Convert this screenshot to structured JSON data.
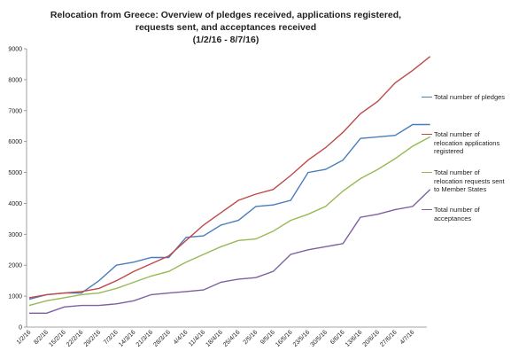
{
  "chart_data": {
    "type": "line",
    "title": "Relocation from Greece: Overview of pledges received, applications registered, requests sent, and acceptances received",
    "subtitle": "(1/2/16 - 8/7/16)",
    "categories": [
      "1/2/16",
      "8/2/16",
      "15/2/16",
      "22/2/16",
      "29/2/16",
      "7/3/16",
      "14/3/16",
      "21/3/16",
      "28/3/16",
      "4/4/16",
      "11/4/16",
      "18/4/16",
      "25/4/16",
      "2/5/16",
      "9/5/16",
      "16/5/16",
      "23/5/16",
      "30/5/16",
      "6/6/16",
      "13/6/16",
      "20/6/16",
      "27/6/16",
      "4/7/16",
      null
    ],
    "series": [
      {
        "name": "Total number of pledges",
        "color": "#4a7ebb",
        "values": [
          900,
          1050,
          1100,
          1100,
          1500,
          2000,
          2100,
          2250,
          2250,
          2900,
          2950,
          3300,
          3450,
          3900,
          3950,
          4100,
          5000,
          5100,
          5400,
          6100,
          6150,
          6200,
          6550,
          6550
        ]
      },
      {
        "name": "Total number of relocation applications registered",
        "color": "#be4b48",
        "values": [
          950,
          1050,
          1100,
          1150,
          1250,
          1500,
          1800,
          2050,
          2300,
          2800,
          3300,
          3700,
          4100,
          4300,
          4450,
          4900,
          5400,
          5800,
          6300,
          6900,
          7300,
          7900,
          8300,
          8750
        ]
      },
      {
        "name": "Total number of relocation requests sent to Member States",
        "color": "#98b954",
        "values": [
          700,
          850,
          950,
          1050,
          1100,
          1250,
          1450,
          1650,
          1800,
          2100,
          2350,
          2600,
          2800,
          2850,
          3100,
          3450,
          3650,
          3900,
          4400,
          4800,
          5100,
          5450,
          5850,
          6150
        ]
      },
      {
        "name": "Total number of acceptances",
        "color": "#7d60a0",
        "values": [
          450,
          450,
          650,
          700,
          700,
          750,
          850,
          1050,
          1100,
          1150,
          1200,
          1450,
          1550,
          1600,
          1800,
          2350,
          2500,
          2600,
          2700,
          3550,
          3650,
          3800,
          3900,
          4450
        ]
      }
    ],
    "ylim": [
      0,
      9000
    ],
    "yticks": [
      0,
      1000,
      2000,
      3000,
      4000,
      5000,
      6000,
      7000,
      8000,
      9000
    ],
    "legend": "right"
  }
}
